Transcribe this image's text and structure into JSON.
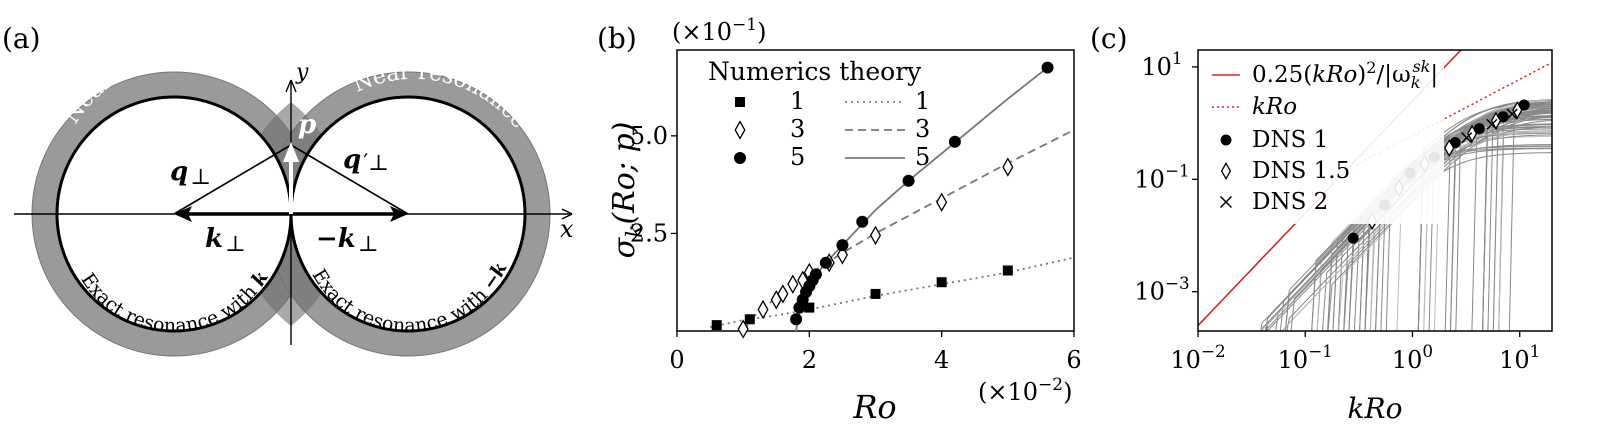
{
  "panels": {
    "a": {
      "label": "(a)",
      "axis_x": "x",
      "axis_y": "y",
      "near_left": "Near resonance",
      "near_right": "Near resonance",
      "exact_left_text": "Exact resonance with ",
      "exact_left_vec": "k",
      "exact_right_text": "Exact resonance with ",
      "exact_right_vec": "−k",
      "vec_p": "p",
      "vec_q": "q",
      "vec_q_sub": "⊥",
      "vec_qp": "q",
      "vec_qp_sub": "′⊥",
      "vec_k": "k",
      "vec_k_sub": "⊥",
      "vec_mk": "−k",
      "vec_mk_sub": "⊥"
    },
    "b": {
      "label": "(b)"
    },
    "c": {
      "label": "(c)"
    }
  },
  "chart_data": [
    {
      "panel": "b",
      "type": "scatter",
      "xlabel": "Ro",
      "ylabel_main": "σ",
      "ylabel_sub": "k",
      "ylabel_rest": "(Ro; p)",
      "x_multiplier": "(×10−2)",
      "y_multiplier": "(×10−1)",
      "xlim": [
        0,
        6
      ],
      "ylim": [
        0,
        7.2
      ],
      "xticks": [
        "0",
        "2",
        "4",
        "6"
      ],
      "yticks": [
        "2.5",
        "5.0"
      ],
      "legend_title": "Numerics theory",
      "legend_labels": [
        "1",
        "3",
        "5"
      ],
      "legend_position": "upper-left",
      "series": [
        {
          "name": "1",
          "marker": "square",
          "points": [
            [
              0.6,
              0.15
            ],
            [
              1.1,
              0.3
            ],
            [
              2.0,
              0.6
            ],
            [
              3.0,
              0.95
            ],
            [
              4.0,
              1.25
            ],
            [
              5.0,
              1.55
            ]
          ],
          "theory_style": "dotted",
          "theory": [
            [
              0.5,
              0.1
            ],
            [
              1.0,
              0.28
            ],
            [
              1.5,
              0.4
            ],
            [
              2.0,
              0.55
            ],
            [
              3.0,
              0.9
            ],
            [
              4.0,
              1.2
            ],
            [
              5.0,
              1.5
            ],
            [
              6.0,
              1.88
            ]
          ]
        },
        {
          "name": "3",
          "marker": "diamond",
          "points": [
            [
              1.0,
              0.05
            ],
            [
              1.3,
              0.55
            ],
            [
              1.5,
              0.8
            ],
            [
              1.6,
              0.95
            ],
            [
              1.75,
              1.2
            ],
            [
              1.9,
              1.3
            ],
            [
              2.0,
              1.5
            ],
            [
              2.3,
              1.75
            ],
            [
              2.5,
              1.95
            ],
            [
              3.0,
              2.45
            ],
            [
              4.0,
              3.3
            ],
            [
              5.0,
              4.2
            ]
          ],
          "theory_style": "dashed",
          "theory": [
            [
              1.0,
              0.0
            ],
            [
              1.2,
              0.45
            ],
            [
              1.5,
              0.85
            ],
            [
              2.0,
              1.45
            ],
            [
              2.5,
              2.0
            ],
            [
              3.0,
              2.5
            ],
            [
              4.0,
              3.4
            ],
            [
              5.0,
              4.3
            ],
            [
              6.0,
              5.15
            ]
          ]
        },
        {
          "name": "5",
          "marker": "circle",
          "points": [
            [
              1.8,
              0.3
            ],
            [
              1.85,
              0.6
            ],
            [
              1.9,
              0.8
            ],
            [
              1.95,
              1.0
            ],
            [
              2.0,
              1.15
            ],
            [
              2.05,
              1.3
            ],
            [
              2.1,
              1.45
            ],
            [
              2.25,
              1.75
            ],
            [
              2.5,
              2.2
            ],
            [
              2.8,
              2.8
            ],
            [
              3.5,
              3.85
            ],
            [
              4.2,
              4.85
            ],
            [
              5.6,
              6.75
            ]
          ],
          "theory_style": "solid",
          "theory": [
            [
              1.8,
              0.0
            ],
            [
              1.85,
              0.5
            ],
            [
              1.95,
              0.95
            ],
            [
              2.05,
              1.3
            ],
            [
              2.2,
              1.65
            ],
            [
              2.5,
              2.2
            ],
            [
              3.0,
              3.1
            ],
            [
              3.5,
              3.85
            ],
            [
              4.0,
              4.55
            ],
            [
              4.5,
              5.25
            ],
            [
              5.0,
              5.95
            ],
            [
              5.6,
              6.75
            ]
          ]
        }
      ]
    },
    {
      "panel": "c",
      "type": "line",
      "xlabel": "kRo",
      "x_scale": "log",
      "y_scale": "log",
      "xlim": [
        0.01,
        20
      ],
      "ylim": [
        0.0002,
        20
      ],
      "xticks": [
        "10−2",
        "10−1",
        "100",
        "101"
      ],
      "yticks": [
        "10−3",
        "10−1",
        "101"
      ],
      "legend_position": "upper-left",
      "legend_entries": [
        {
          "label": "0.25(kRo)2/|ωksk|",
          "style": "red-solid"
        },
        {
          "label": "kRo",
          "style": "red-dotted"
        },
        {
          "label": "DNS 1",
          "style": "circle"
        },
        {
          "label": "DNS 1.5",
          "style": "diamond"
        },
        {
          "label": "DNS 2",
          "style": "cross"
        }
      ],
      "theory_quadratic_coefficient": 0.25,
      "theory_linear_coefficient": 1,
      "dns_series": [
        {
          "name": "DNS 1",
          "marker": "circle",
          "points": [
            [
              0.28,
              0.009
            ],
            [
              0.55,
              0.035
            ],
            [
              0.95,
              0.13
            ],
            [
              1.6,
              0.25
            ],
            [
              2.5,
              0.45
            ],
            [
              4.2,
              0.8
            ],
            [
              7.0,
              1.3
            ],
            [
              11,
              2.1
            ]
          ]
        },
        {
          "name": "DNS 1.5",
          "marker": "diamond",
          "points": [
            [
              0.42,
              0.018
            ],
            [
              0.75,
              0.07
            ],
            [
              1.3,
              0.19
            ],
            [
              2.2,
              0.36
            ],
            [
              3.6,
              0.65
            ],
            [
              6.0,
              1.1
            ],
            [
              9.5,
              1.7
            ]
          ]
        },
        {
          "name": "DNS 2",
          "marker": "cross",
          "points": [
            [
              3.2,
              0.55
            ],
            [
              5.5,
              0.95
            ],
            [
              8.5,
              1.45
            ]
          ]
        }
      ],
      "gray_curve_color": "#888888",
      "light_curve_color": "#bbbbbb"
    }
  ],
  "colors": {
    "theory_red": "#d62728",
    "gray_band": "#999999",
    "ink": "#000000",
    "gray_line": "#777777"
  }
}
